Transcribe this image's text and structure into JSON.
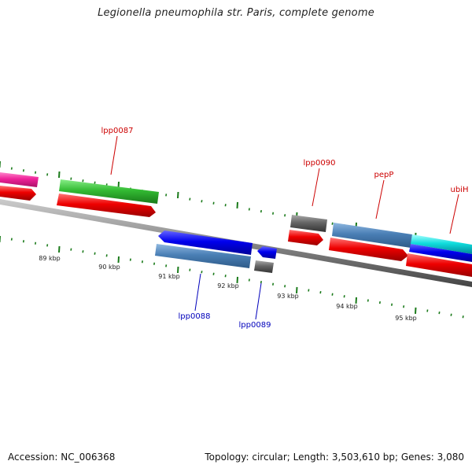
{
  "title": "Legionella pneumophila str. Paris, complete genome",
  "footer": {
    "accession": "Accession: NC_006368",
    "topology": "Topology: circular; Length: 3,503,610 bp; Genes: 3,080"
  },
  "colors": {
    "forward_strand_label": "#cc0000",
    "reverse_strand_label": "#0000bb",
    "tick": "#1a7a1a",
    "backbone": "#888888"
  },
  "scale_labels": [
    "89 kbp",
    "90 kbp",
    "91 kbp",
    "92 kbp",
    "93 kbp",
    "94 kbp",
    "95 kbp"
  ],
  "gene_labels": {
    "forward": [
      "lpp0087",
      "lpp0090",
      "pepP",
      "ubiH"
    ],
    "reverse": [
      "lpp0088",
      "lpp0089"
    ]
  }
}
